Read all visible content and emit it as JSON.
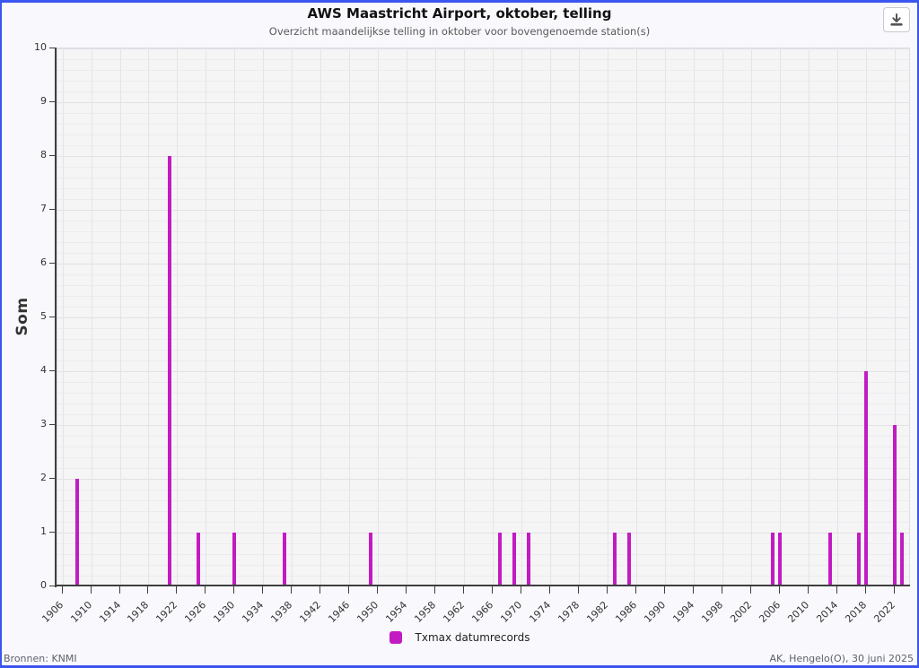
{
  "colors": {
    "page_border": "#3c55ef",
    "bar": "#c21bc2",
    "plot_background": "#f5f5f6",
    "axis": "#3f3f3f"
  },
  "footer": {
    "source": "Bronnen: KNMI",
    "credit": "AK, Hengelo(O), 30 juni 2025"
  },
  "chart_data": {
    "type": "bar",
    "title": "AWS Maastricht Airport, oktober, telling",
    "subtitle": "Overzicht maandelijkse telling in oktober voor bovengenoemde station(s)",
    "xlabel": "",
    "ylabel": "Som",
    "ylim": [
      0,
      10
    ],
    "y_ticks": [
      0,
      1,
      2,
      3,
      4,
      5,
      6,
      7,
      8,
      9,
      10
    ],
    "y_minor_step": 0.2,
    "xlim": [
      1905.3,
      2024.3
    ],
    "x_ticks": [
      1906,
      1910,
      1914,
      1918,
      1922,
      1926,
      1930,
      1934,
      1938,
      1942,
      1946,
      1950,
      1954,
      1958,
      1962,
      1966,
      1970,
      1974,
      1978,
      1982,
      1986,
      1990,
      1994,
      1998,
      2002,
      2006,
      2010,
      2014,
      2018,
      2022
    ],
    "grid": true,
    "legend_position": "bottom",
    "series": [
      {
        "name": "Txmax datumrecords",
        "color": "#c21bc2",
        "x": [
          1908,
          1921,
          1925,
          1930,
          1937,
          1949,
          1967,
          1969,
          1971,
          1983,
          1985,
          2005,
          2006,
          2013,
          2017,
          2018,
          2022,
          2023
        ],
        "values": [
          2,
          8,
          1,
          1,
          1,
          1,
          1,
          1,
          1,
          1,
          1,
          1,
          1,
          1,
          1,
          4,
          3,
          1
        ]
      }
    ]
  }
}
